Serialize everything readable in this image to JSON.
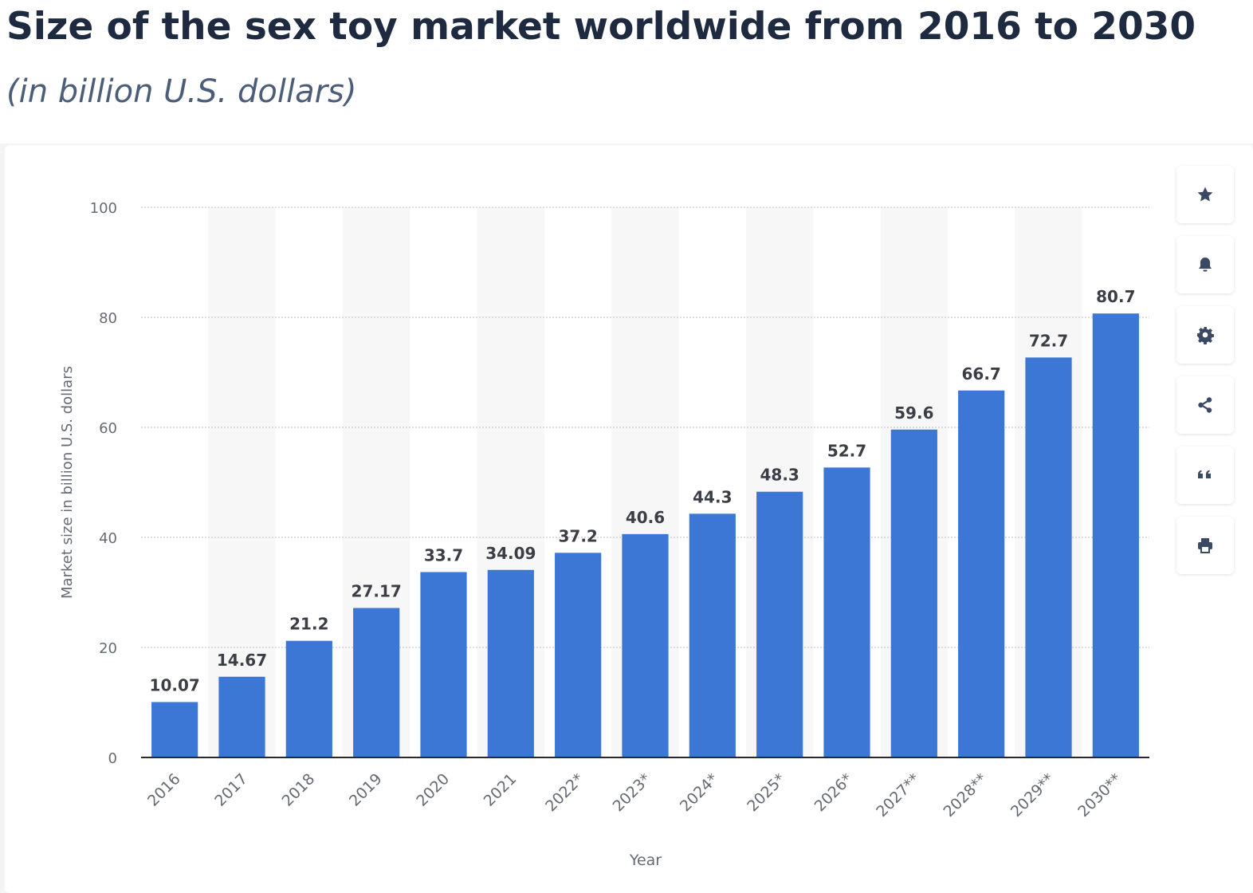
{
  "header": {
    "title": "Size of the sex toy market worldwide from 2016 to 2030",
    "subtitle": "(in billion U.S. dollars)"
  },
  "toolbar": {
    "buttons": [
      {
        "icon": "star-icon"
      },
      {
        "icon": "bell-icon"
      },
      {
        "icon": "gear-icon"
      },
      {
        "icon": "share-icon"
      },
      {
        "icon": "quote-icon"
      },
      {
        "icon": "print-icon"
      }
    ]
  },
  "chart_data": {
    "type": "bar",
    "categories": [
      "2016",
      "2017",
      "2018",
      "2019",
      "2020",
      "2021",
      "2022*",
      "2023*",
      "2024*",
      "2025*",
      "2026*",
      "2027**",
      "2028**",
      "2029**",
      "2030**"
    ],
    "values": [
      10.07,
      14.67,
      21.2,
      27.17,
      33.7,
      34.09,
      37.2,
      40.6,
      44.3,
      48.3,
      52.7,
      59.6,
      66.7,
      72.7,
      80.7
    ],
    "data_labels": [
      "10.07",
      "14.67",
      "21.2",
      "27.17",
      "33.7",
      "34.09",
      "37.2",
      "40.6",
      "44.3",
      "48.3",
      "52.7",
      "59.6",
      "66.7",
      "72.7",
      "80.7"
    ],
    "xlabel": "Year",
    "ylabel": "Market size in billion U.S. dollars",
    "ylim": [
      0,
      100
    ],
    "yticks": [
      "0",
      "20",
      "40",
      "60",
      "80",
      "100"
    ],
    "grid": true,
    "bar_color": "#3d77d6"
  }
}
